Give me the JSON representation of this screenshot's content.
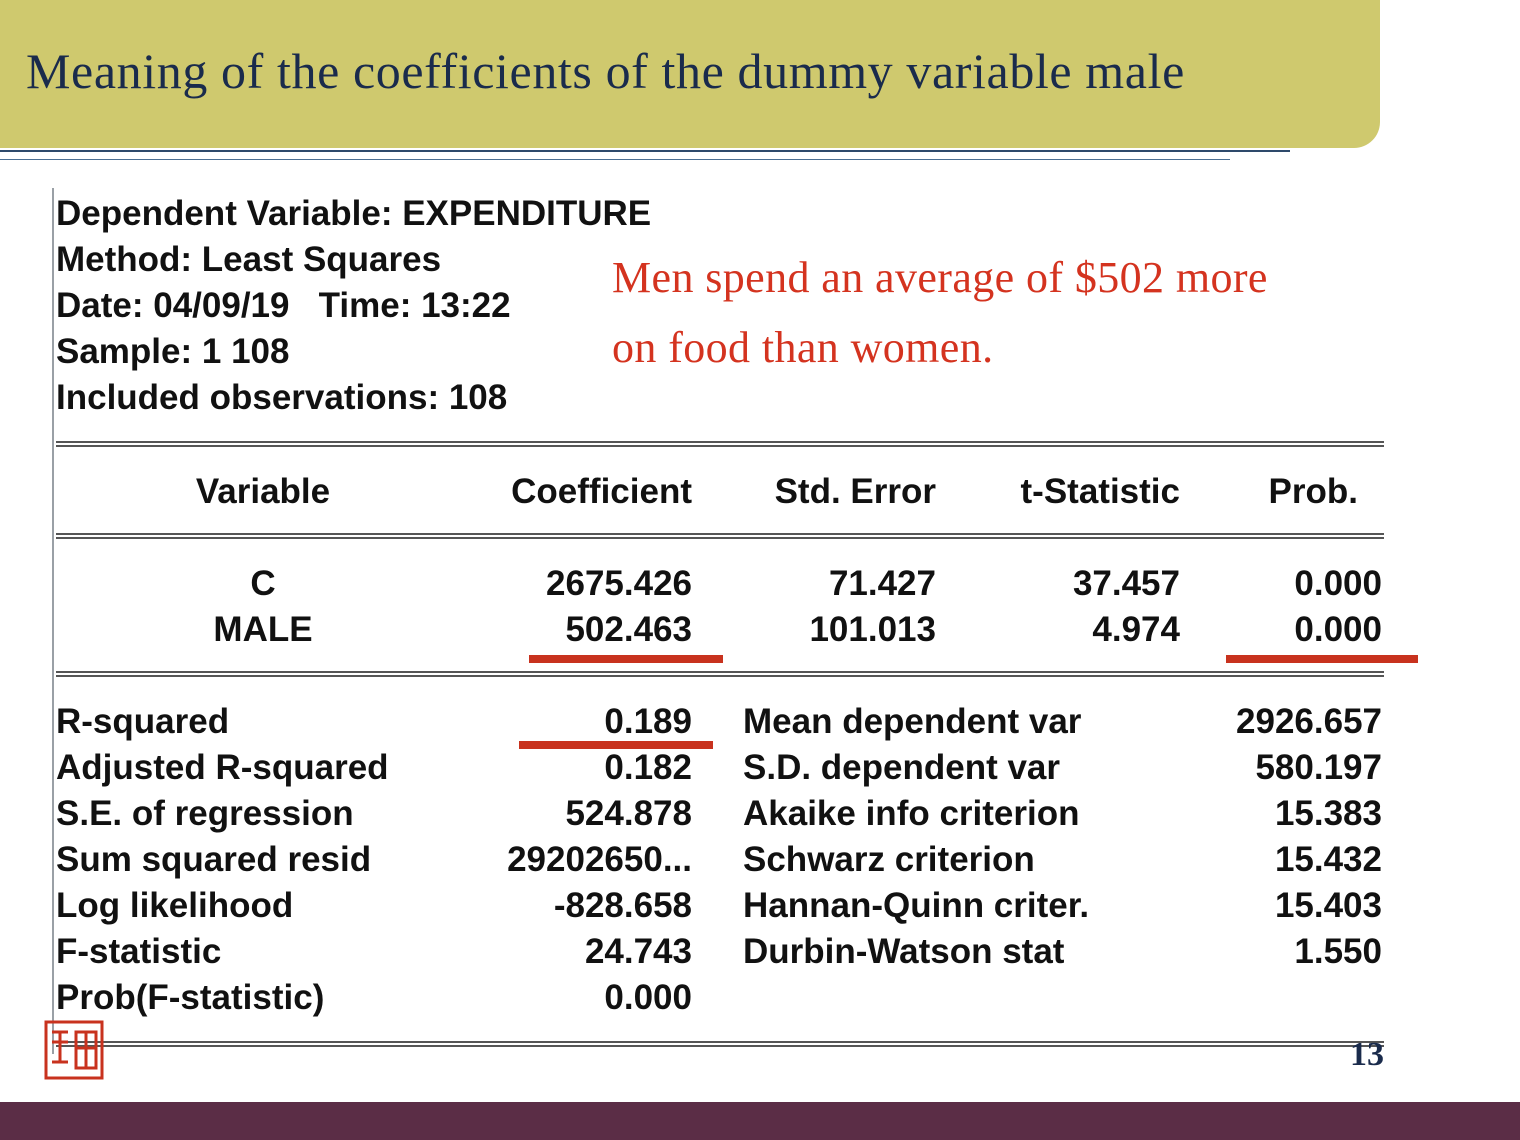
{
  "slide": {
    "title": "Meaning of the coefficients of the dummy variable male",
    "page_number": "13",
    "note_lines": [
      "Men spend an average of $502 more",
      "on food than women."
    ],
    "colors": {
      "title_bar": "#cfc96e",
      "title_text": "#1a2b4c",
      "note": "#d4331f",
      "highlight": "#c8321e",
      "footer": "#5b2d46"
    }
  },
  "output": {
    "header": [
      "Dependent Variable: EXPENDITURE",
      "Method: Least Squares",
      "Date: 04/09/19   Time: 13:22",
      "Sample: 1 108",
      "Included observations: 108"
    ],
    "columns": [
      "Variable",
      "Coefficient",
      "Std. Error",
      "t-Statistic",
      "Prob."
    ],
    "rows": [
      {
        "variable": "C",
        "coefficient": "2675.426",
        "std_error": "71.427",
        "t_stat": "37.457",
        "prob": "0.000"
      },
      {
        "variable": "MALE",
        "coefficient": "502.463",
        "std_error": "101.013",
        "t_stat": "4.974",
        "prob": "0.000"
      }
    ],
    "stats_left": [
      {
        "label": "R-squared",
        "value": "0.189"
      },
      {
        "label": "Adjusted R-squared",
        "value": "0.182"
      },
      {
        "label": "S.E. of regression",
        "value": "524.878"
      },
      {
        "label": "Sum squared resid",
        "value": "29202650..."
      },
      {
        "label": "Log likelihood",
        "value": "-828.658"
      },
      {
        "label": "F-statistic",
        "value": "24.743"
      },
      {
        "label": "Prob(F-statistic)",
        "value": "0.000"
      }
    ],
    "stats_right": [
      {
        "label": "Mean dependent var",
        "value": "2926.657"
      },
      {
        "label": "S.D. dependent var",
        "value": "580.197"
      },
      {
        "label": "Akaike info criterion",
        "value": "15.383"
      },
      {
        "label": "Schwarz criterion",
        "value": "15.432"
      },
      {
        "label": "Hannan-Quinn criter.",
        "value": "15.403"
      },
      {
        "label": "Durbin-Watson stat",
        "value": "1.550"
      }
    ]
  }
}
